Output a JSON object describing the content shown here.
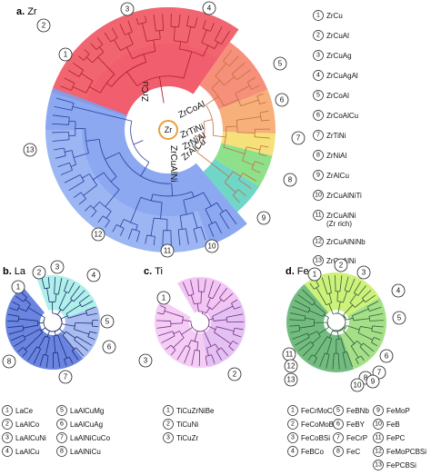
{
  "panels": {
    "zr": {
      "letter": "a.",
      "name": "Zr",
      "center": "Zr",
      "branch_labels": [
        "ZrCu",
        "ZrCoAl",
        "ZrTiNi",
        "ZrNiAl",
        "ZrAlCu",
        "ZrCuAlNi"
      ],
      "legend": [
        {
          "num": "1",
          "label": "ZrCu"
        },
        {
          "num": "2",
          "label": "ZrCuAl"
        },
        {
          "num": "3",
          "label": "ZrCuAg"
        },
        {
          "num": "4",
          "label": "ZrCuAgAl"
        },
        {
          "num": "5",
          "label": "ZrCoAl"
        },
        {
          "num": "6",
          "label": "ZrCoAlCu"
        },
        {
          "num": "7",
          "label": "ZrTiNi"
        },
        {
          "num": "8",
          "label": "ZrNiAl"
        },
        {
          "num": "9",
          "label": "ZrAlCu"
        },
        {
          "num": "10",
          "label": "ZrCuAlNiTi"
        },
        {
          "num": "11",
          "label": "ZrCuAlNi",
          "label2": "(Zr rich)"
        },
        {
          "num": "12",
          "label": "ZrCuAlNiNb"
        },
        {
          "num": "13",
          "label": "ZrCuAlNi"
        }
      ],
      "callouts": [
        "1",
        "2",
        "3",
        "4",
        "5",
        "6",
        "7",
        "8",
        "9",
        "10",
        "11",
        "12",
        "13"
      ],
      "colors": {
        "red": "#ef4d5d",
        "salmon": "#f6907a",
        "orange": "#f8b07b",
        "yellow": "#f6e07a",
        "green": "#8fe08a",
        "teal": "#6fd6c8",
        "blue": "#7e9ef0",
        "blue_light": "#a9c0f5"
      }
    },
    "la": {
      "letter": "b.",
      "name": "La",
      "legend": [
        {
          "num": "1",
          "label": "LaCe"
        },
        {
          "num": "2",
          "label": "LaAlCo"
        },
        {
          "num": "3",
          "label": "LaAlCuNi"
        },
        {
          "num": "4",
          "label": "LaAlCu"
        },
        {
          "num": "5",
          "label": "LaAlCuMg"
        },
        {
          "num": "6",
          "label": "LaAlCuAg"
        },
        {
          "num": "7",
          "label": "LaAlNiCuCo"
        },
        {
          "num": "8",
          "label": "LaAlNiCu"
        }
      ],
      "callouts": [
        "1",
        "2",
        "3",
        "4",
        "5",
        "6",
        "7",
        "8"
      ],
      "colors": {
        "cyan": "#a6eee8",
        "blue": "#6f8fe8",
        "blue_dark": "#4f6fdc"
      }
    },
    "ti": {
      "letter": "c.",
      "name": "Ti",
      "legend": [
        {
          "num": "1",
          "label": "TiCuZrNiBe"
        },
        {
          "num": "2",
          "label": "TiCuNi"
        },
        {
          "num": "3",
          "label": "TiCuZr"
        }
      ],
      "callouts": [
        "1",
        "2",
        "3"
      ],
      "colors": {
        "pink": "#f1c0f2",
        "violet": "#d9a6ee"
      }
    },
    "fe": {
      "letter": "d.",
      "name": "Fe",
      "legend": [
        {
          "num": "1",
          "label": "FeCrMoC"
        },
        {
          "num": "2",
          "label": "FeCoMoBSi"
        },
        {
          "num": "3",
          "label": "FeCoBSi"
        },
        {
          "num": "4",
          "label": "FeBCo"
        },
        {
          "num": "5",
          "label": "FeBNb"
        },
        {
          "num": "6",
          "label": "FeBY"
        },
        {
          "num": "7",
          "label": "FeCrP"
        },
        {
          "num": "8",
          "label": "FeC"
        },
        {
          "num": "9",
          "label": "FeMoP"
        },
        {
          "num": "10",
          "label": "FeB"
        },
        {
          "num": "11",
          "label": "FePC"
        },
        {
          "num": "12",
          "label": "FeMoPCBSi"
        },
        {
          "num": "13",
          "label": "FePCBSi"
        }
      ],
      "callouts": [
        "1",
        "2",
        "3",
        "4",
        "5",
        "6",
        "7",
        "8",
        "9",
        "10",
        "11",
        "12",
        "13"
      ],
      "colors": {
        "lime": "#c8f06a",
        "green": "#8fd86a",
        "green_dark": "#5ab06a",
        "teal": "#4f9f8a"
      }
    }
  }
}
